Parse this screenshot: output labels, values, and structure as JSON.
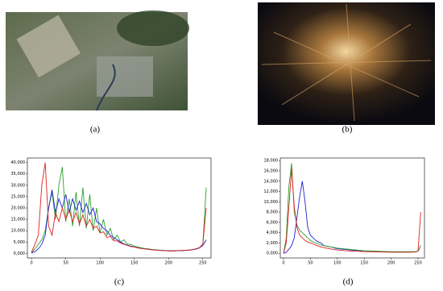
{
  "figure": {
    "panel_labels": [
      "(a)",
      "(b)",
      "(c)",
      "(d)"
    ]
  },
  "chart_data": [
    {
      "type": "line",
      "x": [
        0,
        5,
        10,
        15,
        20,
        25,
        30,
        35,
        40,
        45,
        50,
        55,
        60,
        65,
        70,
        75,
        80,
        85,
        90,
        95,
        100,
        105,
        110,
        115,
        120,
        125,
        130,
        135,
        140,
        145,
        150,
        155,
        160,
        165,
        170,
        175,
        180,
        185,
        190,
        195,
        200,
        205,
        210,
        215,
        220,
        225,
        230,
        235,
        240,
        245,
        250,
        255
      ],
      "xlim": [
        -6,
        262
      ],
      "xticks": [
        0,
        50,
        100,
        150,
        200,
        250
      ],
      "ylim": [
        -2000,
        42000
      ],
      "yticks": [
        {
          "value": 0,
          "label": "0,000"
        },
        {
          "value": 5000,
          "label": "5,000"
        },
        {
          "value": 10000,
          "label": "10,000"
        },
        {
          "value": 15000,
          "label": "15,000"
        },
        {
          "value": 20000,
          "label": "20,000"
        },
        {
          "value": 25000,
          "label": "25,000"
        },
        {
          "value": 30000,
          "label": "30,000"
        },
        {
          "value": 35000,
          "label": "35,000"
        },
        {
          "value": 40000,
          "label": "40,000"
        }
      ],
      "series": [
        {
          "color": "#2ca02c",
          "values": [
            300,
            2000,
            4000,
            6000,
            10000,
            20000,
            27000,
            15000,
            30000,
            38000,
            14000,
            24000,
            12000,
            27000,
            12000,
            29000,
            11000,
            26000,
            10000,
            20000,
            9000,
            15000,
            8000,
            11000,
            6000,
            8000,
            5000,
            6000,
            4000,
            4000,
            3200,
            2800,
            2500,
            2200,
            2000,
            1800,
            1600,
            1500,
            1400,
            1300,
            1200,
            1200,
            1200,
            1300,
            1300,
            1400,
            1500,
            1700,
            2000,
            2500,
            4000,
            29000
          ]
        },
        {
          "color": "#1f1fd6",
          "values": [
            200,
            800,
            2000,
            4000,
            8000,
            20000,
            28000,
            18000,
            24000,
            20000,
            26000,
            18000,
            24000,
            19000,
            23000,
            18000,
            22000,
            17000,
            20000,
            14000,
            13000,
            11000,
            10000,
            8000,
            7000,
            6000,
            5000,
            4200,
            3600,
            3200,
            2800,
            2500,
            2200,
            2000,
            1800,
            1600,
            1500,
            1400,
            1300,
            1200,
            1100,
            1100,
            1100,
            1200,
            1200,
            1300,
            1400,
            1600,
            1900,
            2400,
            3500,
            6000
          ]
        },
        {
          "color": "#e02020",
          "values": [
            500,
            4000,
            8000,
            30000,
            40000,
            12000,
            8000,
            18000,
            14000,
            20000,
            15000,
            19000,
            14000,
            18000,
            13000,
            17000,
            12000,
            15000,
            11000,
            12000,
            9000,
            9500,
            7000,
            7500,
            5500,
            5500,
            4500,
            4000,
            3500,
            3000,
            2800,
            2400,
            2200,
            2000,
            1800,
            1600,
            1500,
            1400,
            1300,
            1200,
            1100,
            1100,
            1100,
            1200,
            1300,
            1400,
            1500,
            1700,
            2000,
            2500,
            4000,
            20000
          ]
        }
      ]
    },
    {
      "type": "line",
      "x": [
        0,
        5,
        10,
        15,
        20,
        25,
        30,
        35,
        40,
        45,
        50,
        55,
        60,
        65,
        70,
        75,
        80,
        85,
        90,
        95,
        100,
        105,
        110,
        115,
        120,
        125,
        130,
        135,
        140,
        145,
        150,
        155,
        160,
        165,
        170,
        175,
        180,
        185,
        190,
        195,
        200,
        205,
        210,
        215,
        220,
        225,
        230,
        235,
        240,
        245,
        250,
        255
      ],
      "xlim": [
        -6,
        262
      ],
      "xticks": [
        0,
        50,
        100,
        150,
        200,
        250
      ],
      "ylim": [
        -900,
        18500
      ],
      "yticks": [
        {
          "value": 0,
          "label": "0,000"
        },
        {
          "value": 2000,
          "label": "2,000"
        },
        {
          "value": 4000,
          "label": "4,000"
        },
        {
          "value": 6000,
          "label": "6,000"
        },
        {
          "value": 8000,
          "label": "8,000"
        },
        {
          "value": 10000,
          "label": "10,000"
        },
        {
          "value": 12000,
          "label": "12,000"
        },
        {
          "value": 14000,
          "label": "14,000"
        },
        {
          "value": 16000,
          "label": "16,000"
        },
        {
          "value": 18000,
          "label": "18,000"
        }
      ],
      "series": [
        {
          "color": "#1f1fd6",
          "values": [
            0,
            200,
            800,
            1500,
            3000,
            7000,
            11000,
            14000,
            10000,
            5000,
            3500,
            3000,
            2500,
            2200,
            2000,
            1500,
            1400,
            1300,
            1200,
            1000,
            900,
            850,
            800,
            750,
            700,
            650,
            600,
            560,
            530,
            500,
            480,
            460,
            440,
            420,
            400,
            380,
            360,
            340,
            320,
            310,
            300,
            300,
            300,
            300,
            300,
            300,
            300,
            300,
            300,
            320,
            400,
            1500
          ]
        },
        {
          "color": "#2ca02c",
          "values": [
            0,
            3000,
            13000,
            17500,
            8000,
            5500,
            4500,
            4000,
            3500,
            3000,
            2500,
            2200,
            2000,
            1800,
            1600,
            1500,
            1400,
            1300,
            1200,
            1100,
            1000,
            950,
            900,
            850,
            800,
            750,
            700,
            650,
            600,
            550,
            500,
            480,
            460,
            440,
            420,
            400,
            380,
            360,
            340,
            320,
            300,
            300,
            300,
            300,
            300,
            300,
            300,
            300,
            300,
            320,
            400,
            1500
          ]
        },
        {
          "color": "#e02020",
          "values": [
            0,
            2000,
            9000,
            16500,
            9000,
            5000,
            3500,
            3000,
            2500,
            2200,
            2000,
            1800,
            1600,
            1400,
            1200,
            1100,
            1000,
            900,
            800,
            700,
            650,
            600,
            550,
            500,
            480,
            450,
            420,
            400,
            380,
            350,
            330,
            310,
            300,
            280,
            270,
            260,
            250,
            240,
            230,
            220,
            210,
            200,
            200,
            200,
            200,
            200,
            200,
            200,
            220,
            250,
            400,
            8000
          ]
        }
      ]
    }
  ]
}
